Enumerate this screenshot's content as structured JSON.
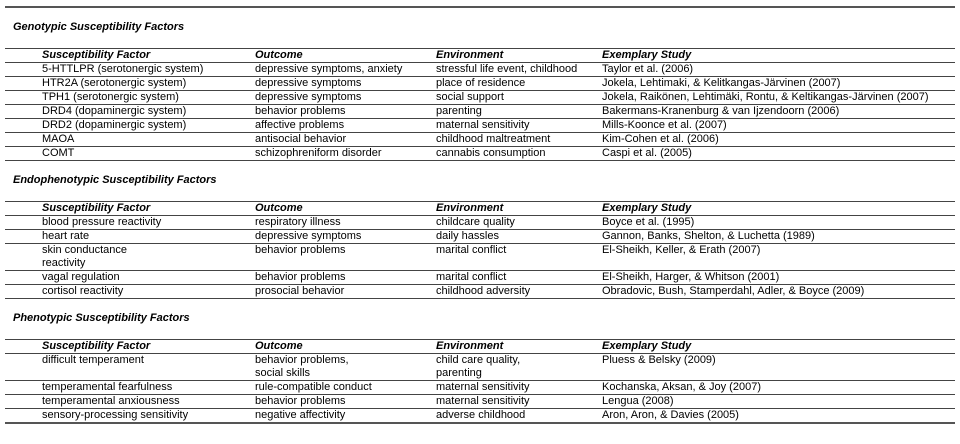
{
  "sections": [
    {
      "title": "Genotypic Susceptibility Factors",
      "headers": [
        "Susceptibility Factor",
        "Outcome",
        "Environment",
        "Exemplary Study"
      ],
      "rows": [
        [
          "5-HTTLPR (serotonergic system)",
          "depressive symptoms, anxiety",
          "stressful life event, childhood",
          "Taylor et al. (2006)"
        ],
        [
          "HTR2A (serotonergic system)",
          "depressive symptoms",
          "place of residence",
          "Jokela, Lehtimaki, & Kelitkangas-Järvinen (2007)"
        ],
        [
          "TPH1 (serotonergic system)",
          "depressive symptoms",
          "social support",
          "Jokela, Raikönen, Lehtimäki, Rontu, & Keltikangas-Järvinen (2007)"
        ],
        [
          "DRD4 (dopaminergic system)",
          "behavior problems",
          "parenting",
          "Bakermans-Kranenburg & van Ijzendoorn (2006)"
        ],
        [
          "DRD2 (dopaminergic system)",
          "affective problems",
          "maternal sensitivity",
          "Mills-Koonce et al. (2007)"
        ],
        [
          "MAOA",
          "antisocial behavior",
          "childhood maltreatment",
          "Kim-Cohen et al. (2006)"
        ],
        [
          "COMT",
          "schizophreniform disorder",
          "cannabis consumption",
          "Caspi et al. (2005)"
        ]
      ]
    },
    {
      "title": "Endophenotypic Susceptibility Factors",
      "headers": [
        "Susceptibility Factor",
        "Outcome",
        "Environment",
        "Exemplary Study"
      ],
      "rows": [
        [
          "blood pressure reactivity",
          "respiratory illness",
          "childcare quality",
          "Boyce et al. (1995)"
        ],
        [
          "heart rate",
          "depressive symptoms",
          "daily hassles",
          "Gannon, Banks, Shelton, & Luchetta (1989)"
        ],
        [
          "skin conductance\nreactivity",
          "behavior problems",
          "marital conflict",
          "El-Sheikh, Keller, & Erath (2007)"
        ],
        [
          "vagal regulation",
          "behavior problems",
          "marital conflict",
          "El-Sheikh, Harger, & Whitson (2001)"
        ],
        [
          "cortisol reactivity",
          "prosocial behavior",
          "childhood adversity",
          "Obradovic, Bush, Stamperdahl, Adler, & Boyce (2009)"
        ]
      ]
    },
    {
      "title": "Phenotypic Susceptibility Factors",
      "headers": [
        "Susceptibility Factor",
        "Outcome",
        "Environment",
        "Exemplary Study"
      ],
      "rows": [
        [
          "difficult temperament",
          "behavior problems,\n social skills",
          "child care quality,\nparenting",
          "Pluess & Belsky (2009)"
        ],
        [
          "temperamental fearfulness",
          "rule-compatible conduct",
          "maternal sensitivity",
          "Kochanska, Aksan, & Joy (2007)"
        ],
        [
          "temperamental anxiousness",
          "behavior problems",
          "maternal sensitivity",
          "Lengua (2008)"
        ],
        [
          "sensory-processing sensitivity",
          "negative affectivity",
          "adverse childhood",
          "Aron, Aron, & Davies (2005)"
        ]
      ]
    }
  ]
}
